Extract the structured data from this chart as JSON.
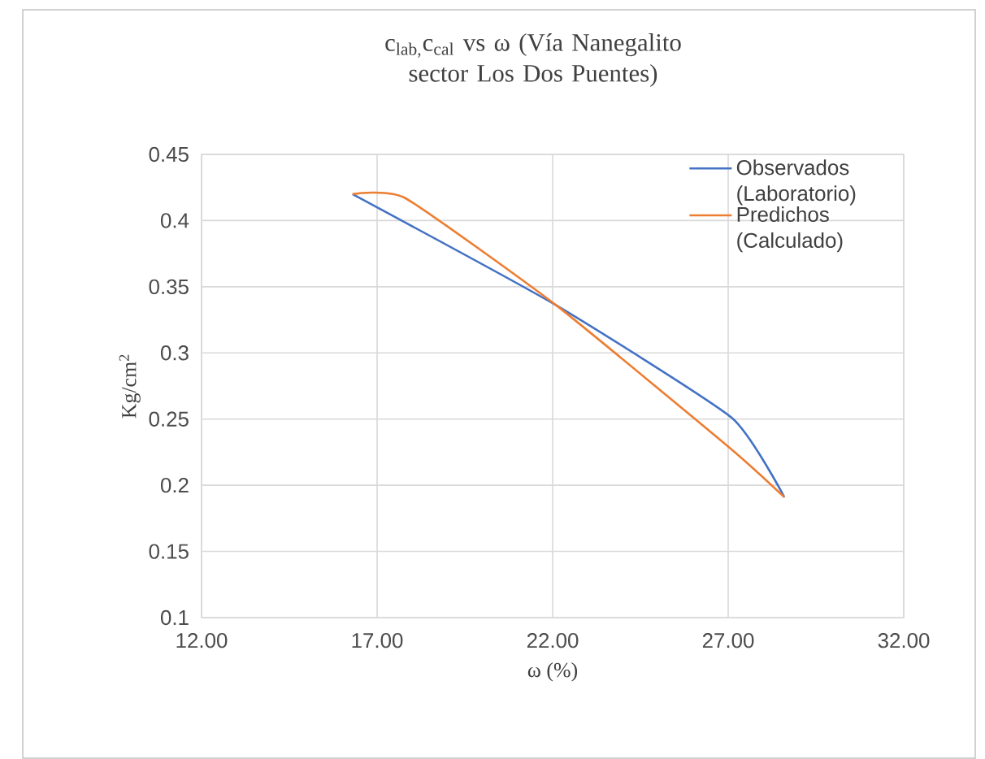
{
  "chart_data": {
    "type": "line",
    "title": "c$_{lab,}$c$_{cal}$ vs ω  (Vía Nanegalito sector Los Dos Puentes)",
    "xlabel": "ω (%)",
    "ylabel": "Kg/cm$^{2}$",
    "xlim": [
      12,
      32
    ],
    "xticks": [
      {
        "value": 12,
        "label": "12.00"
      },
      {
        "value": 17,
        "label": "17.00"
      },
      {
        "value": 22,
        "label": "22.00"
      },
      {
        "value": 27,
        "label": "27.00"
      },
      {
        "value": 32,
        "label": "32.00"
      }
    ],
    "ylim": [
      0.1,
      0.45
    ],
    "yticks": [
      0.1,
      0.15,
      0.2,
      0.25,
      0.3,
      0.35,
      0.4,
      0.45
    ],
    "grid": true,
    "legend": "top right",
    "line_style": "solid",
    "series": [
      {
        "name": "Observados (Laboratorio)",
        "color": "#4472c4",
        "x": [
          16.3,
          22.1,
          27.1,
          28.6
        ],
        "values": [
          0.42,
          0.336,
          0.251,
          0.191
        ]
      },
      {
        "name": "Predichos (Calculado)",
        "color": "#ed7d31",
        "x": [
          16.3,
          17.8,
          22.1,
          27.1,
          28.6
        ],
        "values": [
          0.42,
          0.417,
          0.336,
          0.227,
          0.191
        ]
      }
    ]
  }
}
